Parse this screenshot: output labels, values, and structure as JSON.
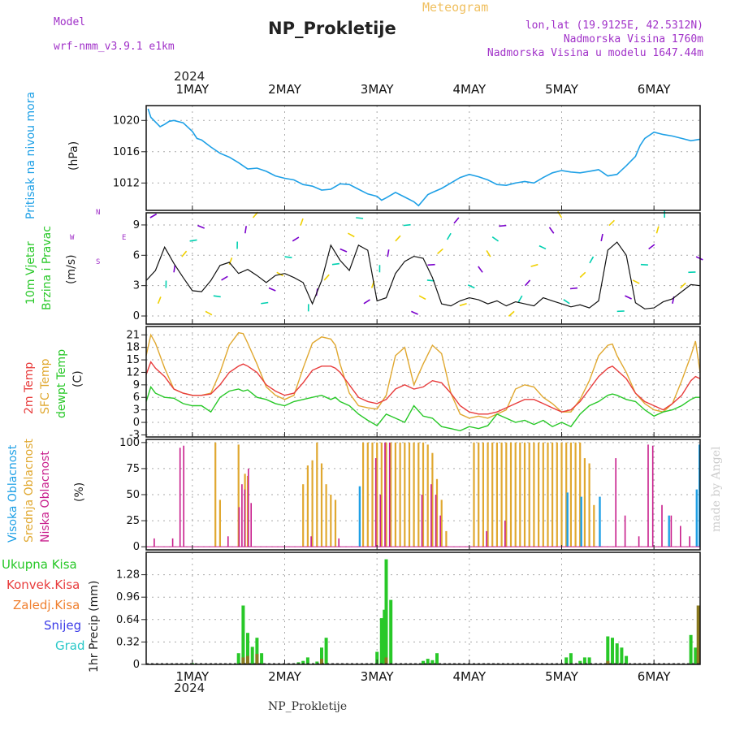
{
  "header": {
    "title": "NP_Prokletije",
    "subtitle": "Meteogram",
    "model_label": "Model",
    "model_name": "wrf-nmm_v3.9.1 e1km",
    "coords": "lon,lat (19.9125E, 42.5312N)",
    "altitude": "Nadmorska Visina 1760m",
    "model_altitude": "Nadmorska Visina u modelu 1647.44m",
    "year": "2024",
    "footer": "NP_Prokletije",
    "credit": "made by Angel"
  },
  "labels": {
    "pressure": "Pritisak na nivou mora",
    "pressure_unit": "(hPa)",
    "wind_1": "10m Vjetar",
    "wind_2": "Brzina i Pravac",
    "wind_unit": "(m/s)",
    "compass_n": "N",
    "compass_s": "S",
    "compass_w": "W",
    "compass_e": "E",
    "temp_2m": "2m Temp",
    "temp_sfc": "SFC Temp",
    "temp_dew": "dewpt Temp",
    "temp_unit": "(C)",
    "cloud_high": "Visoka Oblacnost",
    "cloud_mid": "Srednja Oblacnost",
    "cloud_low": "Niska Oblacnost",
    "cloud_unit": "(%)",
    "precip_total": "Ukupna Kisa",
    "precip_conv": "Konvek.Kisa",
    "precip_frz": "Zaledj.Kisa",
    "precip_snow": "Snijeg",
    "precip_hail": "Grad",
    "precip_unit": "1hr Precip (mm)"
  },
  "colors": {
    "pressure": "#1ea0e6",
    "temp_2m": "#e83c3c",
    "temp_sfc": "#e0a830",
    "temp_dew": "#28c828",
    "cloud_high": "#1ea0e6",
    "cloud_mid": "#e0a830",
    "cloud_low": "#c81e8c",
    "precip_total": "#28c828",
    "precip_conv": "#e83c3c",
    "precip_frz": "#f08030",
    "precip_snow": "#3c3ce8",
    "precip_hail": "#28c8c8",
    "model_text": "#a030c8"
  },
  "chart_data": {
    "type": "meteogram",
    "x_days": [
      "1MAY",
      "2MAY",
      "3MAY",
      "4MAY",
      "5MAY",
      "6MAY"
    ],
    "x_range_days": [
      0.5,
      6.5
    ],
    "panels": {
      "pressure": {
        "ylim": [
          1008.5,
          1021.9
        ],
        "ticks": [
          1012,
          1016,
          1020
        ],
        "x": [
          0.52,
          0.55,
          0.6,
          0.65,
          0.7,
          0.75,
          0.8,
          0.9,
          1.0,
          1.05,
          1.1,
          1.2,
          1.3,
          1.4,
          1.5,
          1.6,
          1.7,
          1.8,
          1.9,
          2.0,
          2.1,
          2.2,
          2.3,
          2.4,
          2.5,
          2.6,
          2.7,
          2.8,
          2.9,
          3.0,
          3.05,
          3.1,
          3.2,
          3.3,
          3.4,
          3.45,
          3.5,
          3.55,
          3.6,
          3.7,
          3.8,
          3.9,
          4.0,
          4.1,
          4.2,
          4.3,
          4.4,
          4.5,
          4.6,
          4.7,
          4.8,
          4.9,
          5.0,
          5.1,
          5.2,
          5.3,
          5.4,
          5.5,
          5.6,
          5.7,
          5.8,
          5.85,
          5.9,
          6.0,
          6.1,
          6.2,
          6.3,
          6.4,
          6.5
        ],
        "y": [
          1021.5,
          1020.4,
          1019.8,
          1019.2,
          1019.5,
          1019.9,
          1020.0,
          1019.7,
          1018.6,
          1017.7,
          1017.5,
          1016.6,
          1015.8,
          1015.3,
          1014.6,
          1013.8,
          1013.9,
          1013.5,
          1012.9,
          1012.6,
          1012.4,
          1011.8,
          1011.6,
          1011.1,
          1011.2,
          1011.9,
          1011.8,
          1011.2,
          1010.6,
          1010.3,
          1009.8,
          1010.1,
          1010.8,
          1010.2,
          1009.6,
          1009.1,
          1009.8,
          1010.5,
          1010.8,
          1011.3,
          1012.0,
          1012.7,
          1013.1,
          1012.8,
          1012.4,
          1011.8,
          1011.7,
          1012.0,
          1012.2,
          1012.0,
          1012.7,
          1013.3,
          1013.6,
          1013.4,
          1013.3,
          1013.5,
          1013.7,
          1012.9,
          1013.1,
          1014.2,
          1015.4,
          1016.8,
          1017.7,
          1018.5,
          1018.2,
          1018.0,
          1017.7,
          1017.4,
          1017.6
        ]
      },
      "wind": {
        "ylim": [
          -0.8,
          10.2
        ],
        "ticks": [
          0,
          3,
          6,
          9
        ],
        "x": [
          0.5,
          0.6,
          0.7,
          0.8,
          0.9,
          1.0,
          1.1,
          1.2,
          1.3,
          1.4,
          1.5,
          1.6,
          1.7,
          1.8,
          1.9,
          2.0,
          2.1,
          2.2,
          2.3,
          2.4,
          2.5,
          2.6,
          2.7,
          2.8,
          2.9,
          3.0,
          3.1,
          3.2,
          3.3,
          3.4,
          3.5,
          3.6,
          3.7,
          3.8,
          3.9,
          4.0,
          4.1,
          4.2,
          4.3,
          4.4,
          4.5,
          4.6,
          4.7,
          4.8,
          4.9,
          5.0,
          5.1,
          5.2,
          5.3,
          5.4,
          5.5,
          5.6,
          5.7,
          5.8,
          5.9,
          6.0,
          6.1,
          6.2,
          6.3,
          6.4,
          6.5
        ],
        "speed": [
          3.5,
          4.5,
          6.8,
          5.2,
          3.8,
          2.5,
          2.4,
          3.5,
          5.0,
          5.3,
          4.2,
          4.6,
          4.0,
          3.3,
          4.0,
          4.2,
          3.8,
          3.3,
          1.2,
          3.5,
          7.0,
          5.5,
          4.5,
          7.0,
          6.5,
          1.5,
          1.8,
          4.2,
          5.4,
          5.9,
          5.7,
          3.8,
          1.2,
          1.0,
          1.5,
          1.8,
          1.6,
          1.2,
          1.5,
          1.0,
          1.4,
          1.2,
          1.0,
          1.8,
          1.5,
          1.2,
          0.9,
          1.1,
          0.8,
          1.5,
          6.5,
          7.3,
          6.0,
          1.3,
          0.7,
          0.8,
          1.4,
          1.7,
          2.4,
          3.1,
          3.0
        ]
      },
      "temperature": {
        "ylim": [
          -3.5,
          23
        ],
        "ticks": [
          -3,
          0,
          3,
          6,
          9,
          12,
          15,
          18,
          21
        ],
        "x": [
          0.5,
          0.55,
          0.6,
          0.7,
          0.8,
          0.9,
          1.0,
          1.1,
          1.2,
          1.3,
          1.4,
          1.5,
          1.55,
          1.6,
          1.7,
          1.8,
          1.9,
          2.0,
          2.1,
          2.2,
          2.3,
          2.4,
          2.5,
          2.55,
          2.6,
          2.7,
          2.8,
          2.9,
          3.0,
          3.1,
          3.2,
          3.3,
          3.4,
          3.5,
          3.6,
          3.7,
          3.8,
          3.9,
          4.0,
          4.1,
          4.2,
          4.3,
          4.4,
          4.5,
          4.6,
          4.7,
          4.8,
          4.9,
          5.0,
          5.1,
          5.2,
          5.3,
          5.4,
          5.5,
          5.55,
          5.6,
          5.7,
          5.8,
          5.9,
          6.0,
          6.1,
          6.2,
          6.3,
          6.4,
          6.45,
          6.5
        ],
        "t2m": [
          11.5,
          14.5,
          13.0,
          11.0,
          8.0,
          7.0,
          6.5,
          6.5,
          6.8,
          9.0,
          12.0,
          13.5,
          14.0,
          13.5,
          12.0,
          9.0,
          7.5,
          6.5,
          7.0,
          9.5,
          12.5,
          13.5,
          13.5,
          13.0,
          12.0,
          9.0,
          6.0,
          5.0,
          4.5,
          5.5,
          8.0,
          9.0,
          8.0,
          8.5,
          10.0,
          9.5,
          7.0,
          4.0,
          2.5,
          2.0,
          2.0,
          2.5,
          3.5,
          4.5,
          5.5,
          5.5,
          4.5,
          3.5,
          2.5,
          3.0,
          5.0,
          8.0,
          11.0,
          13.0,
          13.5,
          12.5,
          10.5,
          7.0,
          5.0,
          4.0,
          3.0,
          4.5,
          6.5,
          10.0,
          11.0,
          10.5
        ],
        "tsfc": [
          16.0,
          21.0,
          19.0,
          13.0,
          8.0,
          7.0,
          6.5,
          6.5,
          7.0,
          12.0,
          18.5,
          21.5,
          21.3,
          19.0,
          14.0,
          8.5,
          6.5,
          5.5,
          6.5,
          13.0,
          19.0,
          20.5,
          20.0,
          18.5,
          14.0,
          7.0,
          4.0,
          3.5,
          3.2,
          6.5,
          16.0,
          18.0,
          9.0,
          14.0,
          18.5,
          16.5,
          7.0,
          2.0,
          1.0,
          1.5,
          1.0,
          2.0,
          3.0,
          8.0,
          9.0,
          8.5,
          6.0,
          4.5,
          2.5,
          2.5,
          5.5,
          10.0,
          16.0,
          18.5,
          18.8,
          16.0,
          12.0,
          7.0,
          4.5,
          3.0,
          2.5,
          4.5,
          10.0,
          16.0,
          19.5,
          12.0
        ],
        "tdew": [
          5.0,
          8.5,
          7.0,
          6.0,
          5.8,
          4.5,
          4.0,
          4.0,
          2.5,
          6.0,
          7.5,
          8.0,
          7.5,
          7.8,
          6.0,
          5.5,
          4.5,
          4.0,
          5.0,
          5.5,
          6.0,
          6.5,
          5.5,
          6.0,
          5.0,
          4.0,
          2.0,
          0.5,
          -0.8,
          2.0,
          1.0,
          0.0,
          4.0,
          1.5,
          1.0,
          -1.0,
          -1.5,
          -2.0,
          -1.0,
          -1.5,
          -0.8,
          2.0,
          1.0,
          0.0,
          0.5,
          -0.5,
          0.5,
          -1.0,
          0.0,
          -1.0,
          2.0,
          4.0,
          5.0,
          6.5,
          6.8,
          6.5,
          5.5,
          5.0,
          3.0,
          1.5,
          2.5,
          3.0,
          4.0,
          5.5,
          6.0,
          6.0
        ]
      },
      "clouds": {
        "ylim": [
          -3,
          103
        ],
        "ticks": [
          0,
          25,
          50,
          75,
          100
        ],
        "high": [
          [
            2.8,
            58
          ],
          [
            5.05,
            52
          ],
          [
            5.2,
            48
          ],
          [
            5.4,
            48
          ],
          [
            6.15,
            30
          ],
          [
            6.45,
            55
          ],
          [
            6.48,
            98
          ]
        ],
        "mid": [
          [
            1.25,
            100
          ],
          [
            1.3,
            45
          ],
          [
            1.5,
            98
          ],
          [
            1.57,
            70
          ],
          [
            1.6,
            68
          ],
          [
            2.2,
            60
          ],
          [
            2.25,
            78
          ],
          [
            2.3,
            83
          ],
          [
            2.35,
            100
          ],
          [
            2.4,
            80
          ],
          [
            2.45,
            60
          ],
          [
            2.5,
            50
          ],
          [
            2.55,
            45
          ],
          [
            2.85,
            100
          ],
          [
            2.9,
            100
          ],
          [
            2.95,
            100
          ],
          [
            3.0,
            100
          ],
          [
            3.05,
            100
          ],
          [
            3.1,
            100
          ],
          [
            3.15,
            100
          ],
          [
            3.2,
            100
          ],
          [
            3.25,
            100
          ],
          [
            3.3,
            100
          ],
          [
            3.35,
            100
          ],
          [
            3.4,
            100
          ],
          [
            3.45,
            100
          ],
          [
            3.5,
            100
          ],
          [
            3.55,
            98
          ],
          [
            3.6,
            90
          ],
          [
            3.65,
            65
          ],
          [
            3.7,
            45
          ],
          [
            3.75,
            15
          ],
          [
            4.05,
            100
          ],
          [
            4.1,
            100
          ],
          [
            4.15,
            100
          ],
          [
            4.2,
            100
          ],
          [
            4.25,
            100
          ],
          [
            4.3,
            100
          ],
          [
            4.35,
            100
          ],
          [
            4.4,
            100
          ],
          [
            4.45,
            100
          ],
          [
            4.5,
            100
          ],
          [
            4.55,
            100
          ],
          [
            4.6,
            100
          ],
          [
            4.65,
            100
          ],
          [
            4.7,
            100
          ],
          [
            4.75,
            100
          ],
          [
            4.8,
            100
          ],
          [
            4.85,
            100
          ],
          [
            4.9,
            100
          ],
          [
            4.95,
            100
          ],
          [
            5.0,
            100
          ],
          [
            5.05,
            100
          ],
          [
            5.1,
            100
          ],
          [
            5.15,
            100
          ],
          [
            5.2,
            100
          ],
          [
            5.25,
            85
          ],
          [
            5.3,
            80
          ],
          [
            5.35,
            40
          ]
        ],
        "low": [
          [
            0.6,
            8
          ],
          [
            0.8,
            8
          ],
          [
            0.88,
            95
          ],
          [
            0.92,
            97
          ],
          [
            1.4,
            10
          ],
          [
            1.52,
            38
          ],
          [
            1.55,
            60
          ],
          [
            1.58,
            55
          ],
          [
            1.62,
            75
          ],
          [
            1.65,
            42
          ],
          [
            2.3,
            10
          ],
          [
            2.6,
            8
          ],
          [
            3.0,
            85
          ],
          [
            3.05,
            50
          ],
          [
            3.1,
            100
          ],
          [
            3.15,
            100
          ],
          [
            3.5,
            50
          ],
          [
            3.6,
            60
          ],
          [
            3.65,
            50
          ],
          [
            3.7,
            30
          ],
          [
            4.2,
            15
          ],
          [
            4.4,
            25
          ],
          [
            5.6,
            85
          ],
          [
            5.7,
            30
          ],
          [
            5.85,
            10
          ],
          [
            5.95,
            98
          ],
          [
            6.0,
            97
          ],
          [
            6.1,
            40
          ],
          [
            6.2,
            30
          ],
          [
            6.3,
            20
          ],
          [
            6.4,
            10
          ]
        ]
      },
      "precip": {
        "ylim": [
          0,
          1.6
        ],
        "ticks": [
          0,
          0.32,
          0.64,
          0.96,
          1.28
        ],
        "total": [
          [
            1.0,
            0.02
          ],
          [
            1.5,
            0.16
          ],
          [
            1.55,
            0.84
          ],
          [
            1.6,
            0.45
          ],
          [
            1.65,
            0.25
          ],
          [
            1.7,
            0.38
          ],
          [
            1.75,
            0.16
          ],
          [
            2.15,
            0.03
          ],
          [
            2.2,
            0.05
          ],
          [
            2.25,
            0.1
          ],
          [
            2.35,
            0.04
          ],
          [
            2.4,
            0.24
          ],
          [
            2.45,
            0.38
          ],
          [
            3.0,
            0.18
          ],
          [
            3.05,
            0.66
          ],
          [
            3.08,
            0.78
          ],
          [
            3.1,
            1.5
          ],
          [
            3.15,
            0.92
          ],
          [
            3.5,
            0.05
          ],
          [
            3.55,
            0.08
          ],
          [
            3.6,
            0.06
          ],
          [
            3.65,
            0.16
          ],
          [
            5.05,
            0.1
          ],
          [
            5.1,
            0.16
          ],
          [
            5.2,
            0.05
          ],
          [
            5.25,
            0.1
          ],
          [
            5.3,
            0.1
          ],
          [
            5.5,
            0.4
          ],
          [
            5.55,
            0.38
          ],
          [
            5.6,
            0.3
          ],
          [
            5.65,
            0.24
          ],
          [
            5.7,
            0.12
          ],
          [
            6.4,
            0.42
          ],
          [
            6.45,
            0.24
          ]
        ],
        "convective": [
          [
            1.55,
            0.1
          ],
          [
            1.6,
            0.12
          ],
          [
            1.7,
            0.15
          ],
          [
            2.4,
            0.08
          ],
          [
            3.1,
            0.1
          ],
          [
            5.5,
            0.05
          ],
          [
            6.48,
            0.84
          ]
        ]
      }
    }
  }
}
